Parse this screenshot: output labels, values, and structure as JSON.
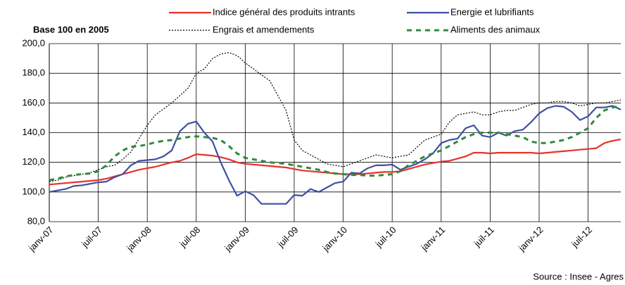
{
  "chart_data": {
    "type": "line",
    "subtitle": "Base 100 en 2005",
    "source": "Source : Insee - Agres",
    "categories": [
      "janv-07",
      null,
      null,
      null,
      null,
      null,
      "juil-07",
      null,
      null,
      null,
      null,
      null,
      "janv-08",
      null,
      null,
      null,
      null,
      null,
      "juil-08",
      null,
      null,
      null,
      null,
      null,
      "janv-09",
      null,
      null,
      null,
      null,
      null,
      "juil-09",
      null,
      null,
      null,
      null,
      null,
      "janv-10",
      null,
      null,
      null,
      null,
      null,
      "juil-10",
      null,
      null,
      null,
      null,
      null,
      "janv-11",
      null,
      null,
      null,
      null,
      null,
      "juil-11",
      null,
      null,
      null,
      null,
      null,
      "janv-12",
      null,
      null,
      null,
      null,
      null,
      "juil-12",
      null,
      null,
      null,
      null
    ],
    "series": [
      {
        "name": "Indice général des produits intrants",
        "color": "#e8312a",
        "style": "solid",
        "values": [
          105,
          105.5,
          106,
          106.5,
          107,
          107.5,
          108,
          109,
          110.5,
          112,
          113.5,
          115,
          116,
          117,
          118.5,
          120,
          121,
          123,
          125.5,
          125,
          124.5,
          123.5,
          122,
          120,
          119,
          118.5,
          118,
          117.5,
          117,
          116.5,
          115.5,
          114.5,
          114,
          113.5,
          113,
          112.5,
          112,
          112,
          112,
          112.5,
          113,
          113.5,
          113.5,
          114,
          115.5,
          117,
          118.5,
          119.5,
          120.5,
          121,
          122.5,
          124,
          126.5,
          126.5,
          126,
          126.5,
          126.5,
          126.5,
          126.5,
          126.5,
          126,
          126.5,
          127,
          127.5,
          128,
          128.5,
          129,
          129.5,
          133,
          134.5,
          135.5
        ]
      },
      {
        "name": "Energie et lubrifiants",
        "color": "#3f4fa3",
        "style": "solid",
        "values": [
          100,
          101,
          102,
          104,
          104.5,
          105.5,
          106.5,
          107,
          110,
          112,
          118,
          121,
          121.5,
          122,
          124,
          128,
          141,
          146,
          147.5,
          140,
          134,
          120,
          108,
          97.5,
          100.5,
          98,
          92,
          92,
          92,
          92,
          98,
          97.5,
          102,
          100,
          103,
          106,
          107,
          113,
          112.5,
          116,
          118,
          118,
          118.5,
          115,
          117,
          119,
          122,
          126,
          133,
          135,
          136,
          143,
          145,
          138,
          137,
          140,
          138,
          141,
          142,
          147,
          153,
          156.5,
          158,
          157.5,
          154,
          148.5,
          151,
          157,
          157,
          158,
          155.5
        ]
      },
      {
        "name": "Engrais et amendements",
        "color": "#000000",
        "style": "dotted",
        "values": [
          107,
          108,
          110,
          111,
          112,
          113,
          115,
          117,
          118,
          122,
          127,
          136,
          145,
          152,
          156,
          160,
          165,
          170,
          180,
          183,
          190,
          193,
          194,
          192,
          187,
          183,
          179,
          175,
          165,
          155,
          135,
          128,
          125,
          122,
          119,
          118,
          117,
          119,
          121,
          123,
          125,
          124,
          123,
          124,
          125,
          130,
          135,
          137,
          139,
          147,
          152,
          153,
          154,
          152,
          152,
          154,
          155,
          155,
          157,
          159,
          160,
          160,
          161,
          161,
          160,
          158,
          159,
          160,
          160,
          161,
          162
        ]
      },
      {
        "name": "Aliments des animaux",
        "color": "#2e8b3e",
        "style": "dashed",
        "values": [
          108,
          109,
          110.5,
          111.5,
          112,
          112.5,
          114,
          118,
          124,
          128,
          130.5,
          131,
          132,
          133.5,
          134.5,
          135,
          136,
          137,
          137.5,
          137,
          136.5,
          135,
          131,
          126,
          123,
          122,
          121,
          120,
          119.5,
          119,
          118,
          117,
          116,
          115,
          113.5,
          112.5,
          112,
          111.5,
          111.5,
          111,
          111,
          111.5,
          112,
          114,
          118,
          121,
          124,
          126,
          128,
          131,
          134,
          137,
          139,
          140,
          140,
          140,
          139,
          138,
          137,
          134,
          133,
          133,
          134,
          135,
          137,
          140,
          143,
          150,
          155,
          157,
          158
        ]
      }
    ],
    "ylim": [
      80,
      200
    ],
    "yticks": [
      {
        "value": 80,
        "label": "80,0"
      },
      {
        "value": 100,
        "label": "100,0"
      },
      {
        "value": 120,
        "label": "120,0"
      },
      {
        "value": 140,
        "label": "140,0"
      },
      {
        "value": 160,
        "label": "160,0"
      },
      {
        "value": 180,
        "label": "180,0"
      },
      {
        "value": 200,
        "label": "200,0"
      }
    ],
    "grid": true
  }
}
